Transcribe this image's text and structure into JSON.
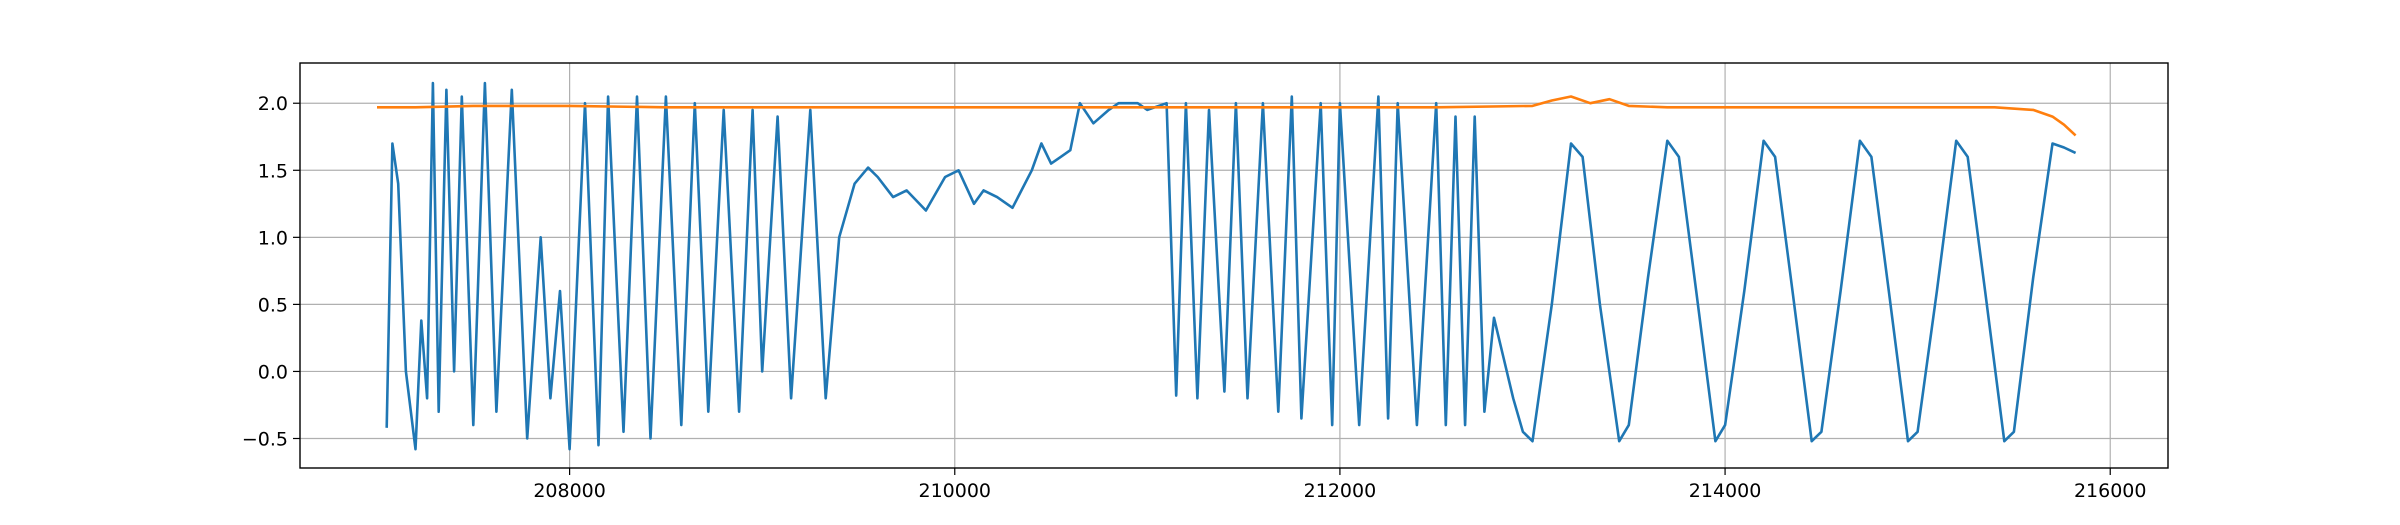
{
  "chart_data": {
    "type": "line",
    "title": "",
    "xlabel": "",
    "ylabel": "",
    "xlim": [
      206600,
      216300
    ],
    "ylim": [
      -0.72,
      2.3
    ],
    "grid": true,
    "x_ticks": [
      208000,
      210000,
      212000,
      214000,
      216000
    ],
    "x_tick_labels": [
      "208000",
      "210000",
      "212000",
      "214000",
      "216000"
    ],
    "y_ticks": [
      -0.5,
      0.0,
      0.5,
      1.0,
      1.5,
      2.0
    ],
    "y_tick_labels": [
      "−0.5",
      "0.0",
      "0.5",
      "1.0",
      "1.5",
      "2.0"
    ],
    "series": [
      {
        "color": "#1f77b4",
        "description_points": "approximate envelope of the noisy trace, read from the figure",
        "x": [
          207050,
          207080,
          207110,
          207150,
          207200,
          207230,
          207260,
          207290,
          207320,
          207360,
          207400,
          207440,
          207500,
          207560,
          207620,
          207700,
          207780,
          207850,
          207900,
          207950,
          208000,
          208080,
          208150,
          208200,
          208280,
          208350,
          208420,
          208500,
          208580,
          208650,
          208720,
          208800,
          208880,
          208950,
          209000,
          209080,
          209150,
          209250,
          209330,
          209400,
          209480,
          209550,
          209600,
          209680,
          209750,
          209850,
          209950,
          210020,
          210100,
          210150,
          210220,
          210300,
          210400,
          210450,
          210500,
          210550,
          210600,
          210650,
          210720,
          210800,
          210850,
          210900,
          210950,
          211000,
          211100,
          211150,
          211200,
          211260,
          211320,
          211400,
          211460,
          211520,
          211600,
          211680,
          211750,
          211800,
          211900,
          211960,
          212000,
          212100,
          212200,
          212250,
          212300,
          212400,
          212500,
          212550,
          212600,
          212650,
          212700,
          212750,
          212800,
          212850,
          212900,
          212950,
          213000,
          213100,
          213200,
          213260,
          213350,
          213450,
          213500,
          213600,
          213700,
          213760,
          213850,
          213950,
          214000,
          214100,
          214200,
          214260,
          214350,
          214450,
          214500,
          214600,
          214700,
          214760,
          214850,
          214950,
          215000,
          215100,
          215200,
          215260,
          215350,
          215450,
          215500,
          215600,
          215700,
          215760,
          215820
        ],
        "y": [
          -0.42,
          1.7,
          1.4,
          0.0,
          -0.58,
          0.38,
          -0.2,
          2.15,
          -0.3,
          2.1,
          0.0,
          2.05,
          -0.4,
          2.15,
          -0.3,
          2.1,
          -0.5,
          1.0,
          -0.2,
          0.6,
          -0.58,
          2.0,
          -0.55,
          2.05,
          -0.45,
          2.05,
          -0.5,
          2.05,
          -0.4,
          2.0,
          -0.3,
          1.95,
          -0.3,
          1.95,
          0.0,
          1.9,
          -0.2,
          1.95,
          -0.2,
          1.0,
          1.4,
          1.52,
          1.45,
          1.3,
          1.35,
          1.2,
          1.45,
          1.5,
          1.25,
          1.35,
          1.3,
          1.22,
          1.5,
          1.7,
          1.55,
          1.6,
          1.65,
          2.0,
          1.85,
          1.95,
          2.0,
          2.0,
          2.0,
          1.95,
          2.0,
          -0.18,
          2.0,
          -0.2,
          1.95,
          -0.15,
          2.0,
          -0.2,
          2.0,
          -0.3,
          2.05,
          -0.35,
          2.0,
          -0.4,
          2.0,
          -0.4,
          2.05,
          -0.35,
          2.0,
          -0.4,
          2.0,
          -0.4,
          1.9,
          -0.4,
          1.9,
          -0.3,
          0.4,
          0.1,
          -0.2,
          -0.45,
          -0.52,
          0.5,
          1.7,
          1.6,
          0.5,
          -0.52,
          -0.4,
          0.7,
          1.72,
          1.6,
          0.6,
          -0.52,
          -0.4,
          0.6,
          1.72,
          1.6,
          0.6,
          -0.52,
          -0.45,
          0.6,
          1.72,
          1.6,
          0.6,
          -0.52,
          -0.45,
          0.6,
          1.72,
          1.6,
          0.6,
          -0.52,
          -0.45,
          0.7,
          1.7,
          1.67,
          1.63
        ]
      },
      {
        "color": "#ff7f0e",
        "description_points": "approximate trace, read from the figure",
        "x": [
          207000,
          207200,
          207500,
          208000,
          208500,
          209000,
          209500,
          210000,
          210500,
          211000,
          211500,
          212000,
          212500,
          213000,
          213100,
          213200,
          213300,
          213400,
          213500,
          213700,
          214000,
          214500,
          215000,
          215400,
          215600,
          215700,
          215760,
          215820
        ],
        "y": [
          1.97,
          1.97,
          1.98,
          1.98,
          1.97,
          1.97,
          1.97,
          1.97,
          1.97,
          1.97,
          1.97,
          1.97,
          1.97,
          1.98,
          2.02,
          2.05,
          2.0,
          2.03,
          1.98,
          1.97,
          1.97,
          1.97,
          1.97,
          1.97,
          1.95,
          1.9,
          1.84,
          1.76
        ]
      }
    ]
  }
}
